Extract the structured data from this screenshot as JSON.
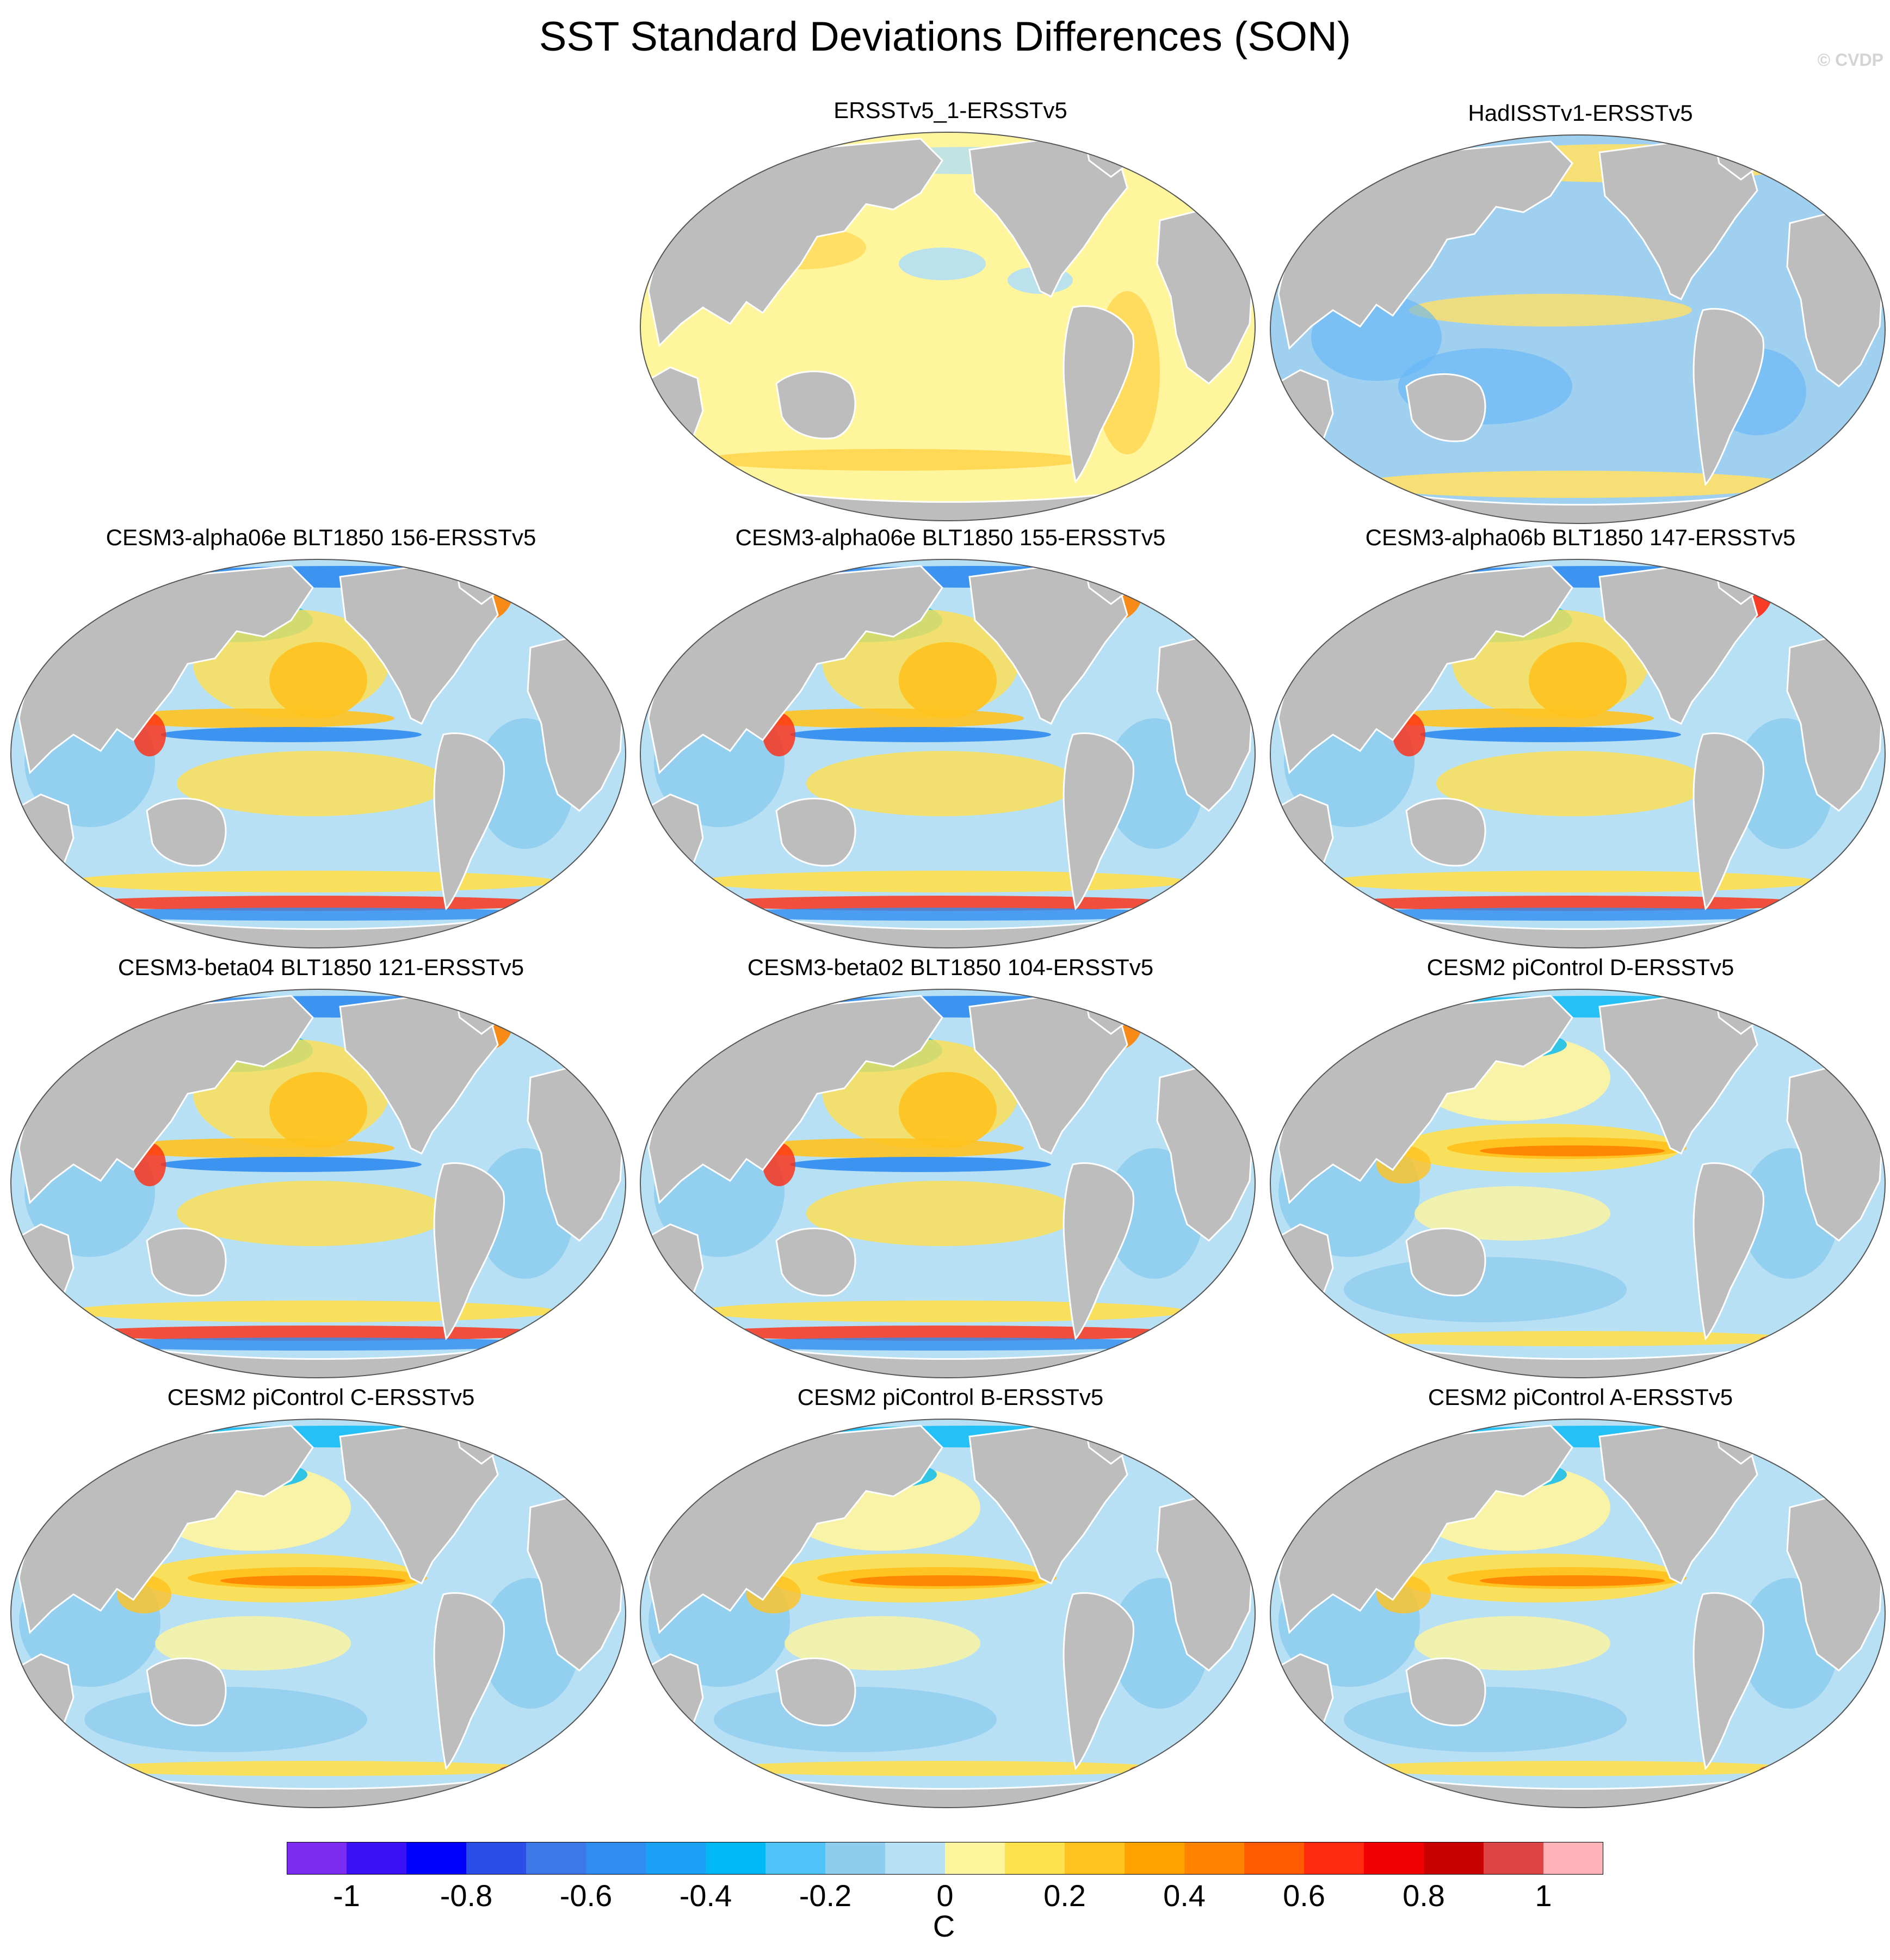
{
  "title": "SST Standard Deviations Differences (SON)",
  "watermark": "© CVDP",
  "panels": [
    {
      "title": "ERSSTv5_1-ERSSTv5",
      "pattern": "obs-near-zero",
      "colors": {
        "base": "#fff59d",
        "accent": "#ffd54f",
        "cool": "#b3dff5"
      }
    },
    {
      "title": "HadISSTv1-ERSSTv5",
      "pattern": "obs-negative",
      "colors": {
        "base": "#9fd0f0",
        "accent": "#64b5f6",
        "warm": "#ffe066"
      }
    },
    {
      "title": "CESM3-alpha06e BLT1850 156-ERSSTv5",
      "pattern": "model-mixed"
    },
    {
      "title": "CESM3-alpha06e BLT1850 155-ERSSTv5",
      "pattern": "model-mixed"
    },
    {
      "title": "CESM3-alpha06b BLT1850 147-ERSSTv5",
      "pattern": "model-mixed-strong-atlantic"
    },
    {
      "title": "CESM3-beta04 BLT1850 121-ERSSTv5",
      "pattern": "model-mixed"
    },
    {
      "title": "CESM3-beta02 BLT1850 104-ERSSTv5",
      "pattern": "model-mixed"
    },
    {
      "title": "CESM2 piControl D-ERSSTv5",
      "pattern": "enso-positive"
    },
    {
      "title": "CESM2 piControl C-ERSSTv5",
      "pattern": "enso-positive"
    },
    {
      "title": "CESM2 piControl B-ERSSTv5",
      "pattern": "enso-positive"
    },
    {
      "title": "CESM2 piControl A-ERSSTv5",
      "pattern": "enso-positive"
    }
  ],
  "colorbar": {
    "unit": "C",
    "tick_labels": [
      "-1",
      "-0.8",
      "-0.6",
      "-0.4",
      "-0.2",
      "0",
      "0.2",
      "0.4",
      "0.6",
      "0.8",
      "1"
    ],
    "colors": [
      "#7b2cf0",
      "#3a10f5",
      "#0000ff",
      "#2a4ee6",
      "#3d78e8",
      "#2f8cf0",
      "#1aa0f5",
      "#00b8f5",
      "#4fc3f7",
      "#8fcdee",
      "#b8e0f5",
      "#fff59d",
      "#ffe04d",
      "#ffc21f",
      "#ffa200",
      "#ff8200",
      "#ff5a00",
      "#ff2a10",
      "#f00000",
      "#c80000",
      "#dd4444",
      "#ffb3b8"
    ]
  },
  "land_color": "#bdbdbd",
  "ocean_base_color": "#ffffff"
}
